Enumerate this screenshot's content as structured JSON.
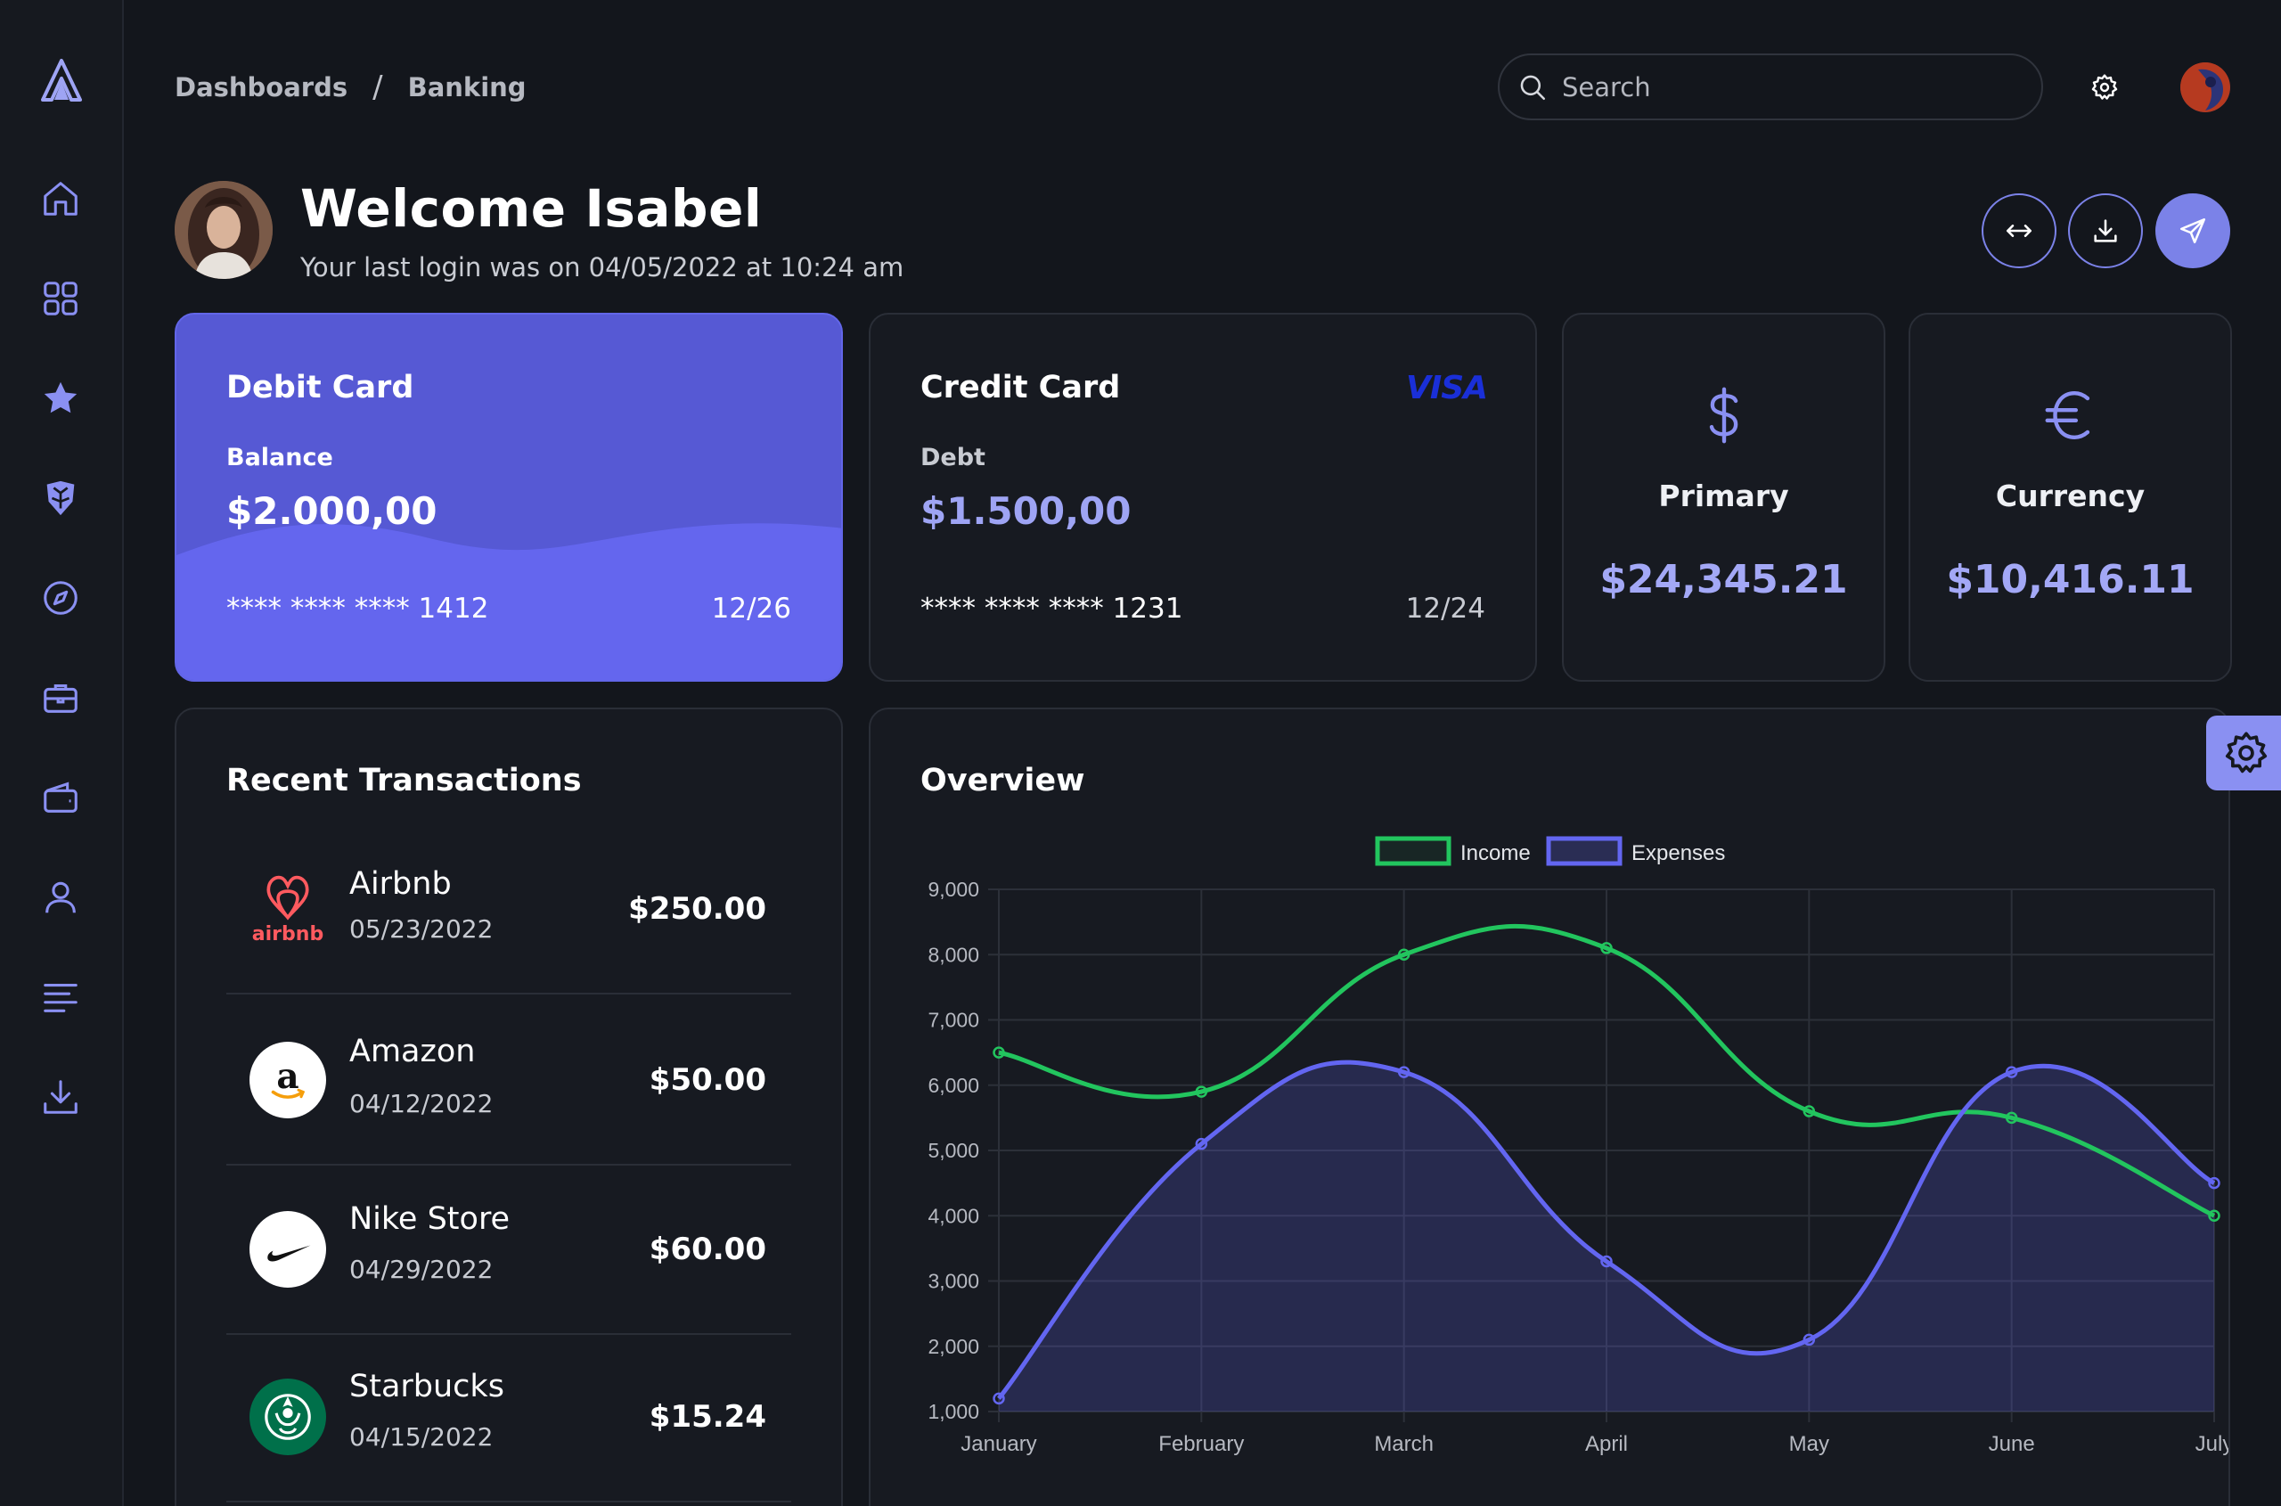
{
  "breadcrumb": [
    "Dashboards",
    "Banking"
  ],
  "search": {
    "placeholder": "Search"
  },
  "welcome": {
    "title": "Welcome Isabel",
    "subtitle": "Your last login was on 04/05/2022 at 10:24 am"
  },
  "debit_card": {
    "title": "Debit Card",
    "label": "Balance",
    "amount": "$2.000,00",
    "number": "**** **** **** 1412",
    "expiry": "12/26"
  },
  "credit_card": {
    "title": "Credit Card",
    "brand": "VISA",
    "label": "Debt",
    "amount": "$1.500,00",
    "number": "**** **** **** 1231",
    "expiry": "12/24"
  },
  "stats": [
    {
      "icon": "dollar-icon",
      "label": "Primary",
      "value": "$24,345.21"
    },
    {
      "icon": "euro-icon",
      "label": "Currency",
      "value": "$10,416.11"
    }
  ],
  "transactions": {
    "title": "Recent Transactions",
    "items": [
      {
        "name": "Airbnb",
        "date": "05/23/2022",
        "amount": "$250.00",
        "logo": "airbnb-logo",
        "logo_text": "airbnb"
      },
      {
        "name": "Amazon",
        "date": "04/12/2022",
        "amount": "$50.00",
        "logo": "amazon-logo"
      },
      {
        "name": "Nike Store",
        "date": "04/29/2022",
        "amount": "$60.00",
        "logo": "nike-logo"
      },
      {
        "name": "Starbucks",
        "date": "04/15/2022",
        "amount": "$15.24",
        "logo": "starbucks-logo"
      }
    ]
  },
  "overview": {
    "title": "Overview"
  },
  "colors": {
    "accent": "#7b82e8",
    "debit_bg": "#5659d4",
    "income": "#22c55e",
    "expenses": "#6366f1"
  },
  "chart_data": {
    "type": "line",
    "categories": [
      "January",
      "February",
      "March",
      "April",
      "May",
      "June",
      "July"
    ],
    "series": [
      {
        "name": "Income",
        "values": [
          6500,
          5900,
          8000,
          8100,
          5600,
          5500,
          4000
        ]
      },
      {
        "name": "Expenses",
        "values": [
          1200,
          5100,
          6200,
          3300,
          2100,
          6200,
          4500
        ]
      }
    ],
    "ylim": [
      1000,
      9000
    ],
    "yticks": [
      "1,000",
      "2,000",
      "3,000",
      "4,000",
      "5,000",
      "6,000",
      "7,000",
      "8,000",
      "9,000"
    ],
    "grid": true,
    "legend": "top-center"
  }
}
